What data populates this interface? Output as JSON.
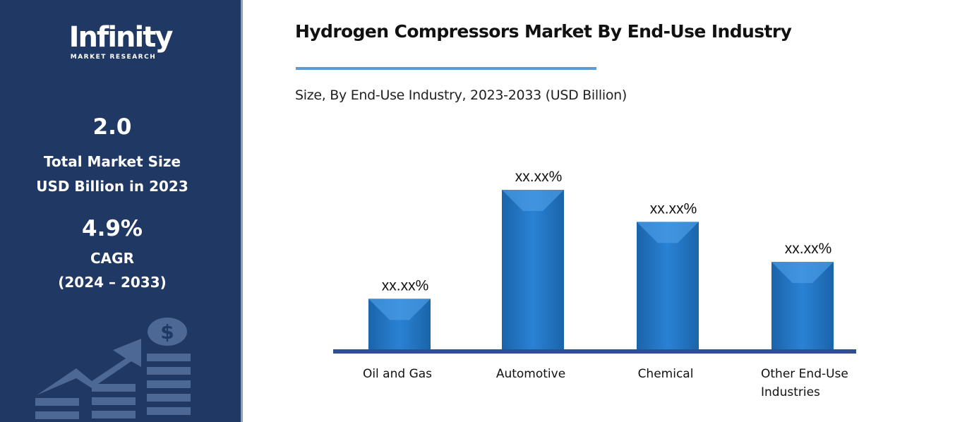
{
  "sidebar": {
    "logo_main": "Infinity",
    "logo_sub": "MARKET RESEARCH",
    "market_size_value": "2.0",
    "market_size_label_1": "Total Market Size",
    "market_size_label_2": "USD Billion in 2023",
    "cagr_value": "4.9%",
    "cagr_label": "CAGR",
    "cagr_period": "(2024 – 2033)",
    "background_color": "#203864",
    "decoration_icon": "growth-chart-dollar-icon"
  },
  "header": {
    "title": "Hydrogen Compressors Market By End-Use Industry",
    "subtitle": "Size, By End-Use Industry, 2023-2033 (USD Billion)"
  },
  "chart_data": {
    "type": "bar",
    "title": "Hydrogen Compressors Market By End-Use Industry",
    "subtitle": "Size, By End-Use Industry, 2023-2033 (USD Billion)",
    "categories": [
      [
        "Oil and Gas"
      ],
      [
        "Automotive"
      ],
      [
        "Chemical"
      ],
      [
        "Other End-Use",
        "Industries"
      ]
    ],
    "relative_values": [
      32,
      100,
      80,
      55
    ],
    "data_labels": [
      "xx.xx%",
      "xx.xx%",
      "xx.xx%",
      "xx.xx%"
    ],
    "bar_color": "#1f78c8",
    "axis_color": "#2f4f8f",
    "grid": false,
    "y_axis_shown": false
  }
}
